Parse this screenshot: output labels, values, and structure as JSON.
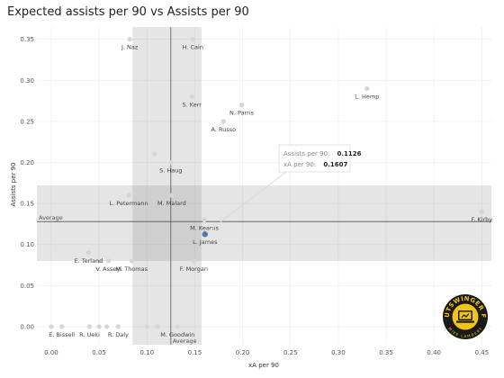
{
  "chart_data": {
    "type": "scatter",
    "title": "Expected assists per 90 vs Assists per 90",
    "xlabel": "xA per 90",
    "ylabel": "Assists per 90",
    "xlim": [
      -0.015,
      0.46
    ],
    "ylim": [
      -0.022,
      0.365
    ],
    "xticks": [
      "0.00",
      "0.05",
      "0.10",
      "0.15",
      "0.20",
      "0.25",
      "0.30",
      "0.35",
      "0.40",
      "0.45"
    ],
    "yticks": [
      "0.00",
      "0.05",
      "0.10",
      "0.15",
      "0.20",
      "0.25",
      "0.30",
      "0.35"
    ],
    "x_average": 0.125,
    "y_average": 0.128,
    "x_band": [
      0.085,
      0.157
    ],
    "y_band": [
      0.08,
      0.172
    ],
    "average_label": "Average",
    "grid": true,
    "highlight_color": "#4a7ba6",
    "point_color": "#d6d6d6",
    "points": [
      {
        "label": "J. Naz",
        "x": 0.082,
        "y": 0.35
      },
      {
        "label": "H. Cain",
        "x": 0.148,
        "y": 0.35
      },
      {
        "label": "L. Hemp",
        "x": 0.33,
        "y": 0.29
      },
      {
        "label": "S. Kerr",
        "x": 0.147,
        "y": 0.28
      },
      {
        "label": "N. Parris",
        "x": 0.199,
        "y": 0.27
      },
      {
        "label": "A. Russo",
        "x": 0.18,
        "y": 0.25
      },
      {
        "label": "",
        "x": 0.108,
        "y": 0.21
      },
      {
        "label": "S. Haug",
        "x": 0.125,
        "y": 0.2
      },
      {
        "label": "M. Malard",
        "x": 0.126,
        "y": 0.16
      },
      {
        "label": "L. Petermann",
        "x": 0.081,
        "y": 0.16
      },
      {
        "label": "M. Kearns",
        "x": 0.16,
        "y": 0.13
      },
      {
        "label": "F. Kirby",
        "x": 0.45,
        "y": 0.14
      },
      {
        "label": "L. James",
        "x": 0.1607,
        "y": 0.1126,
        "highlight": true
      },
      {
        "label": "E. Terland",
        "x": 0.039,
        "y": 0.09
      },
      {
        "label": "",
        "x": 0.05,
        "y": 0.08
      },
      {
        "label": "V. Asseyi",
        "x": 0.06,
        "y": 0.08
      },
      {
        "label": "M. Thomas",
        "x": 0.084,
        "y": 0.08
      },
      {
        "label": "F. Morgan",
        "x": 0.149,
        "y": 0.08
      },
      {
        "label": "E. Bissell",
        "x": 0.011,
        "y": 0.0
      },
      {
        "label": "",
        "x": 0.0,
        "y": 0.0
      },
      {
        "label": "R. Ueki",
        "x": 0.04,
        "y": 0.0
      },
      {
        "label": "",
        "x": 0.05,
        "y": 0.0
      },
      {
        "label": "",
        "x": 0.058,
        "y": 0.0
      },
      {
        "label": "R. Daly",
        "x": 0.07,
        "y": 0.0
      },
      {
        "label": "",
        "x": 0.1,
        "y": 0.0
      },
      {
        "label": "",
        "x": 0.111,
        "y": 0.0
      },
      {
        "label": "M. Goodwin",
        "x": 0.132,
        "y": 0.0
      }
    ]
  },
  "tooltip": {
    "assists_label": "Assists per 90:",
    "assists_value": "0.1126",
    "xa_label": "xA per 90:",
    "xa_value": "0.1607"
  },
  "logo": {
    "text_top": "OUTSWINGER FC",
    "text_bottom": "MIKE LAMBERT",
    "bg_color": "#1a1a1a",
    "accent_color": "#f2c418"
  }
}
